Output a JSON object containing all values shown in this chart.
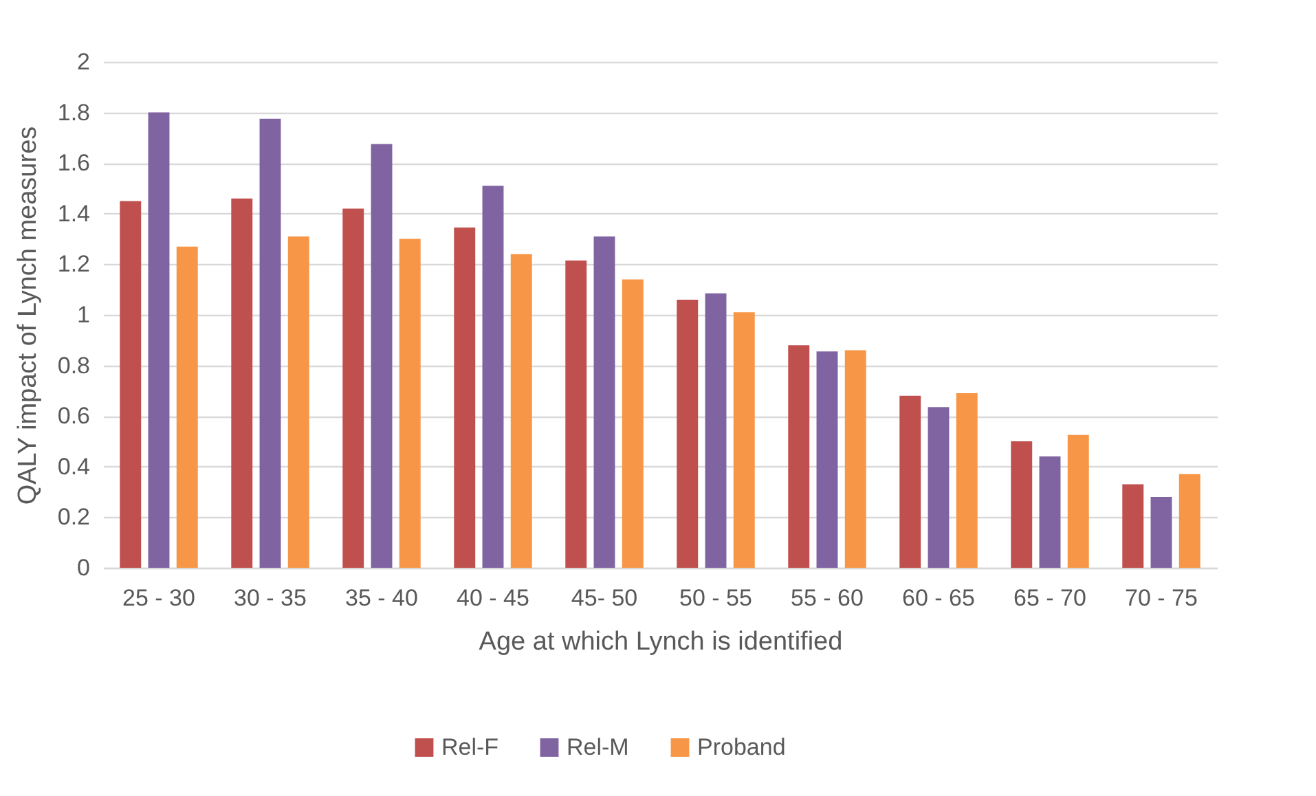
{
  "chart_data": {
    "type": "bar",
    "xlabel": "Age at which Lynch is identified",
    "ylabel": "QALY impact of Lynch measures",
    "categories": [
      "25 - 30",
      "30 - 35",
      "35 - 40",
      "40 - 45",
      "45- 50",
      "50 - 55",
      "55 - 60",
      "60 - 65",
      "65 - 70",
      "70 - 75"
    ],
    "series": [
      {
        "name": "Rel-F",
        "color": "#c0504d",
        "values": [
          1.45,
          1.46,
          1.42,
          1.345,
          1.215,
          1.06,
          0.88,
          0.68,
          0.5,
          0.33
        ]
      },
      {
        "name": "Rel-M",
        "color": "#8064a2",
        "values": [
          1.8,
          1.775,
          1.675,
          1.51,
          1.31,
          1.085,
          0.855,
          0.635,
          0.44,
          0.28
        ]
      },
      {
        "name": "Proband",
        "color": "#f79646",
        "values": [
          1.27,
          1.31,
          1.3,
          1.24,
          1.14,
          1.01,
          0.86,
          0.69,
          0.525,
          0.37
        ]
      }
    ],
    "ylim": [
      0,
      2
    ],
    "yticks": [
      0,
      0.2,
      0.4,
      0.6,
      0.8,
      1,
      1.2,
      1.4,
      1.6,
      1.8,
      2
    ],
    "grid": "y",
    "legend": "bottom"
  }
}
